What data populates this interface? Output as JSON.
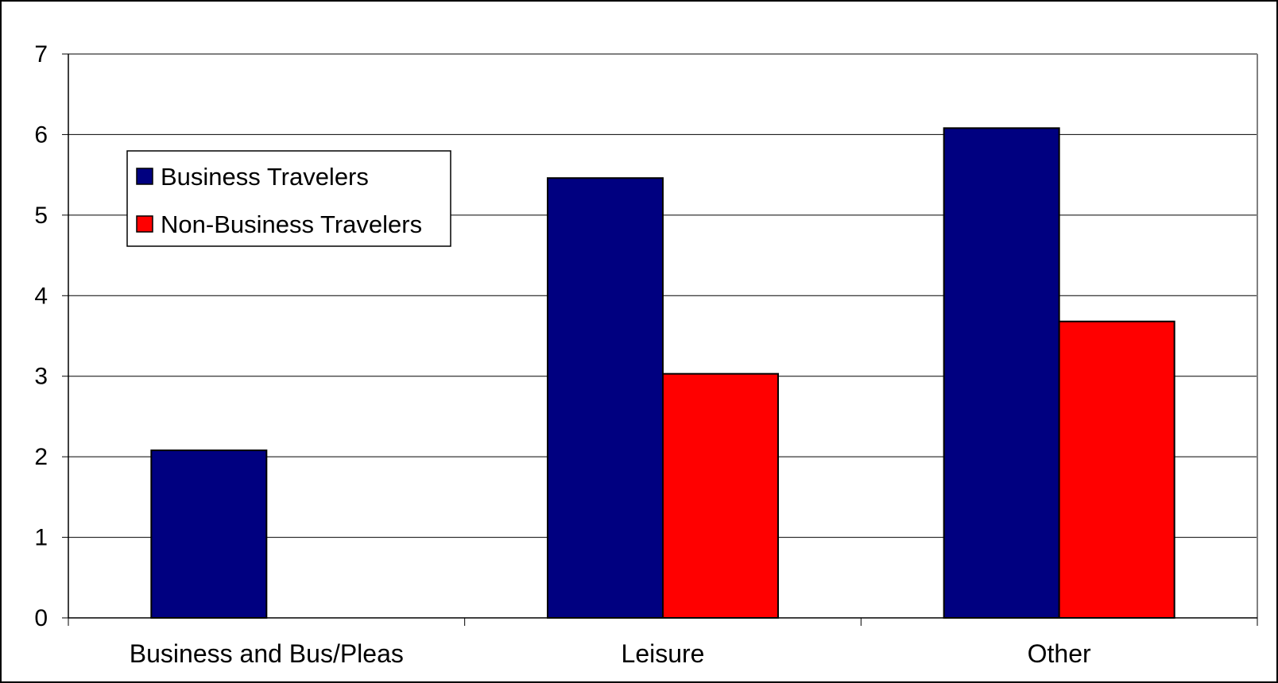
{
  "chart_data": {
    "type": "bar",
    "title": "",
    "xlabel": "",
    "ylabel": "",
    "categories": [
      "Business and Bus/Pleas",
      "Leisure",
      "Other"
    ],
    "series": [
      {
        "name": "Business Travelers",
        "values": [
          2.08,
          5.46,
          6.08
        ],
        "color": "#000080"
      },
      {
        "name": "Non-Business Travelers",
        "values": [
          null,
          3.03,
          3.68
        ],
        "color": "#ff0000"
      }
    ],
    "ylim": [
      0,
      7
    ],
    "yticks": [
      "0",
      "1",
      "2",
      "3",
      "4",
      "5",
      "6",
      "7"
    ],
    "grid": true,
    "legend_position": "top-left",
    "bar_edge_color": "#000000",
    "gridline_color": "#000000",
    "frame_color": "#808080"
  }
}
